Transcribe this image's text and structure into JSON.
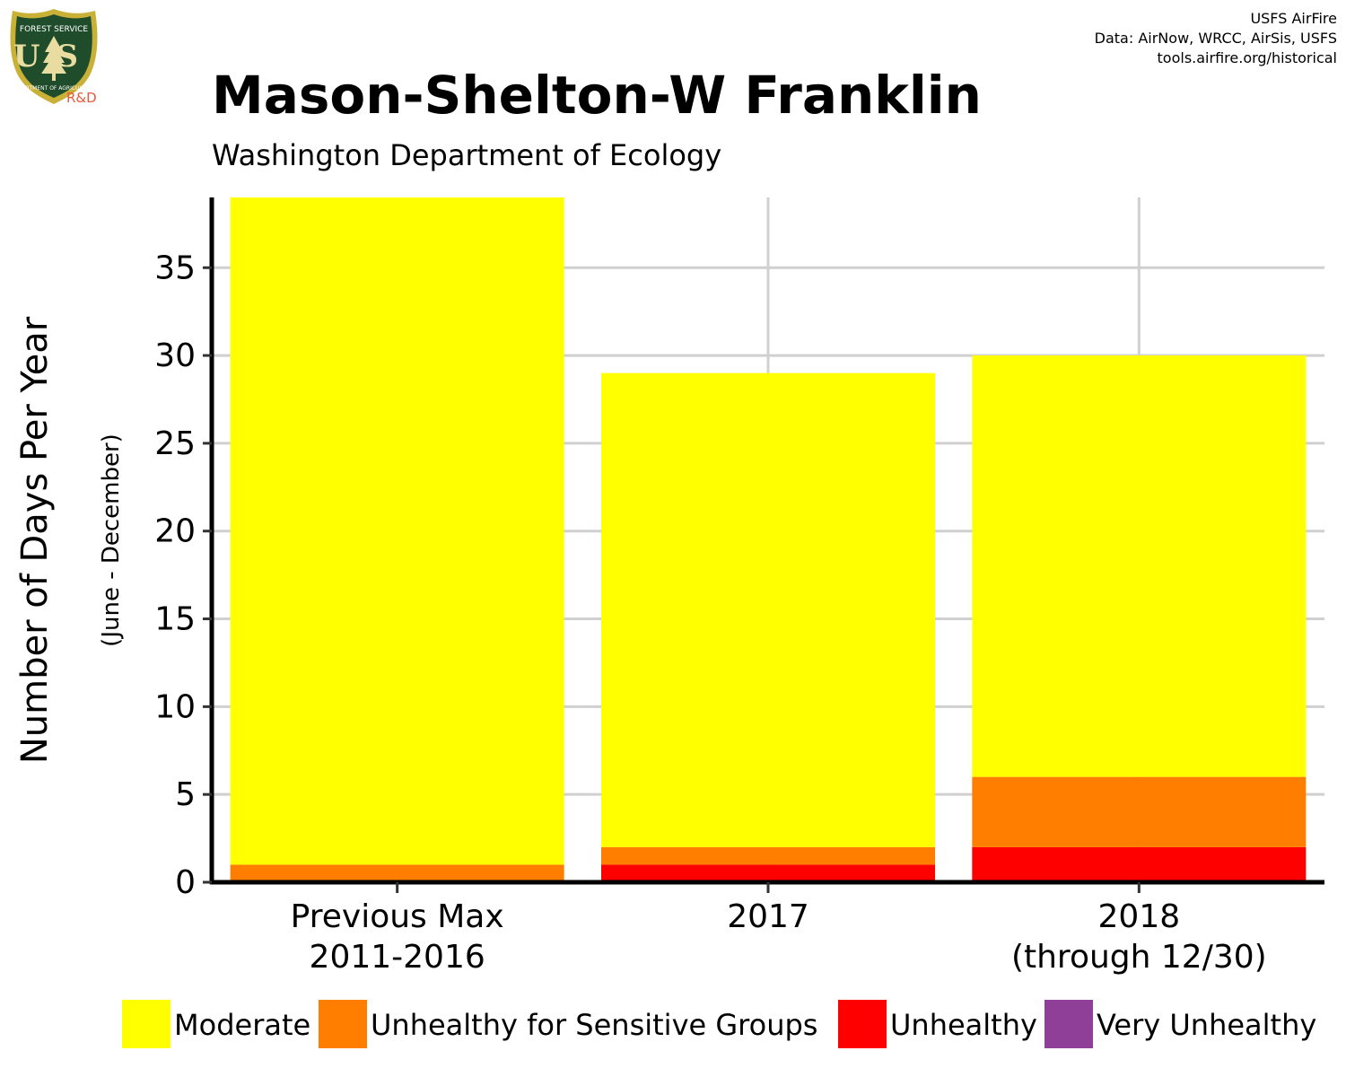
{
  "header": {
    "title": "Mason-Shelton-W Franklin",
    "subtitle": "Washington Department of Ecology",
    "credits": [
      "USFS AirFire",
      "Data: AirNow, WRCC, AirSis, USFS",
      "tools.airfire.org/historical"
    ]
  },
  "logo": {
    "text_forest_service": "FOREST SERVICE",
    "text_us": "US",
    "text_dept": "DEPARTMENT OF AGRICULTURE",
    "text_rd": "R&D"
  },
  "colors": {
    "Moderate": "#ffff00",
    "Unhealthy for Sensitive Groups": "#ff7e00",
    "Unhealthy": "#ff0000",
    "Very Unhealthy": "#8f3f97"
  },
  "chart_data": {
    "type": "bar",
    "stacked": true,
    "categories": [
      [
        "Previous Max",
        "2011-2016"
      ],
      [
        "2017"
      ],
      [
        "2018",
        "(through 12/30)"
      ]
    ],
    "series": [
      {
        "name": "Unhealthy",
        "values": [
          0,
          1,
          2
        ]
      },
      {
        "name": "Unhealthy for Sensitive Groups",
        "values": [
          1,
          1,
          4
        ]
      },
      {
        "name": "Moderate",
        "values": [
          38,
          27,
          24
        ]
      },
      {
        "name": "Very Unhealthy",
        "values": [
          0,
          0,
          0
        ]
      }
    ],
    "ylabel": "Number of Days Per Year",
    "ylabel_sub": "(June - December)",
    "ylim": [
      0,
      39
    ],
    "yticks": [
      0,
      5,
      10,
      15,
      20,
      25,
      30,
      35
    ],
    "grid": true,
    "legend": {
      "position": "bottom",
      "entries": [
        "Moderate",
        "Unhealthy for Sensitive Groups",
        "Unhealthy",
        "Very Unhealthy"
      ]
    }
  }
}
